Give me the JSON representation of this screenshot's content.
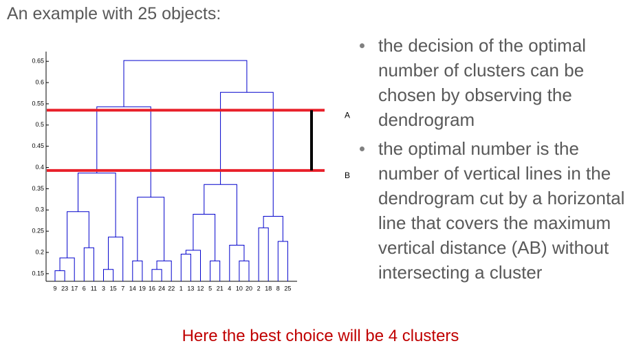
{
  "title": "An example with 25 objects:",
  "bullets": [
    "the decision of the optimal number of clusters can be chosen by observing the dendrogram",
    "the optimal number is the number of vertical lines in the dendrogram cut by a horizontal line that covers the maximum vertical distance (AB) without intersecting a cluster"
  ],
  "conclusion": "Here the best choice will be 4 clusters",
  "chart_data": {
    "type": "dendrogram",
    "leaves": [
      "9",
      "23",
      "17",
      "6",
      "11",
      "3",
      "15",
      "7",
      "14",
      "19",
      "16",
      "24",
      "22",
      "1",
      "13",
      "12",
      "5",
      "21",
      "4",
      "10",
      "20",
      "2",
      "18",
      "8",
      "25"
    ],
    "merges": [
      {
        "children": [
          0,
          1
        ],
        "height": 0.157
      },
      {
        "children": [
          25,
          2
        ],
        "height": 0.187
      },
      {
        "children": [
          3,
          4
        ],
        "height": 0.211
      },
      {
        "children": [
          26,
          27
        ],
        "height": 0.296
      },
      {
        "children": [
          5,
          6
        ],
        "height": 0.16
      },
      {
        "children": [
          29,
          7
        ],
        "height": 0.236
      },
      {
        "children": [
          28,
          30
        ],
        "height": 0.387
      },
      {
        "children": [
          8,
          9
        ],
        "height": 0.18
      },
      {
        "children": [
          10,
          11
        ],
        "height": 0.16
      },
      {
        "children": [
          33,
          12
        ],
        "height": 0.18
      },
      {
        "children": [
          32,
          34
        ],
        "height": 0.33
      },
      {
        "children": [
          31,
          35
        ],
        "height": 0.543
      },
      {
        "children": [
          13,
          14
        ],
        "height": 0.196
      },
      {
        "children": [
          37,
          15
        ],
        "height": 0.205
      },
      {
        "children": [
          16,
          17
        ],
        "height": 0.18
      },
      {
        "children": [
          38,
          39
        ],
        "height": 0.29
      },
      {
        "children": [
          19,
          20
        ],
        "height": 0.18
      },
      {
        "children": [
          18,
          41
        ],
        "height": 0.217
      },
      {
        "children": [
          40,
          42
        ],
        "height": 0.36
      },
      {
        "children": [
          21,
          22
        ],
        "height": 0.258
      },
      {
        "children": [
          23,
          24
        ],
        "height": 0.226
      },
      {
        "children": [
          44,
          45
        ],
        "height": 0.285
      },
      {
        "children": [
          43,
          46
        ],
        "height": 0.577
      },
      {
        "children": [
          36,
          47
        ],
        "height": 0.652
      }
    ],
    "ylim": [
      0.132,
      0.673
    ],
    "yticks": [
      0.15,
      0.2,
      0.25,
      0.3,
      0.35,
      0.4,
      0.45,
      0.5,
      0.55,
      0.6,
      0.65
    ],
    "color": "#0000cc",
    "cuts": [
      {
        "label": "A",
        "value": 0.535,
        "color": "#e8202a"
      },
      {
        "label": "B",
        "value": 0.393,
        "color": "#e8202a"
      }
    ]
  }
}
